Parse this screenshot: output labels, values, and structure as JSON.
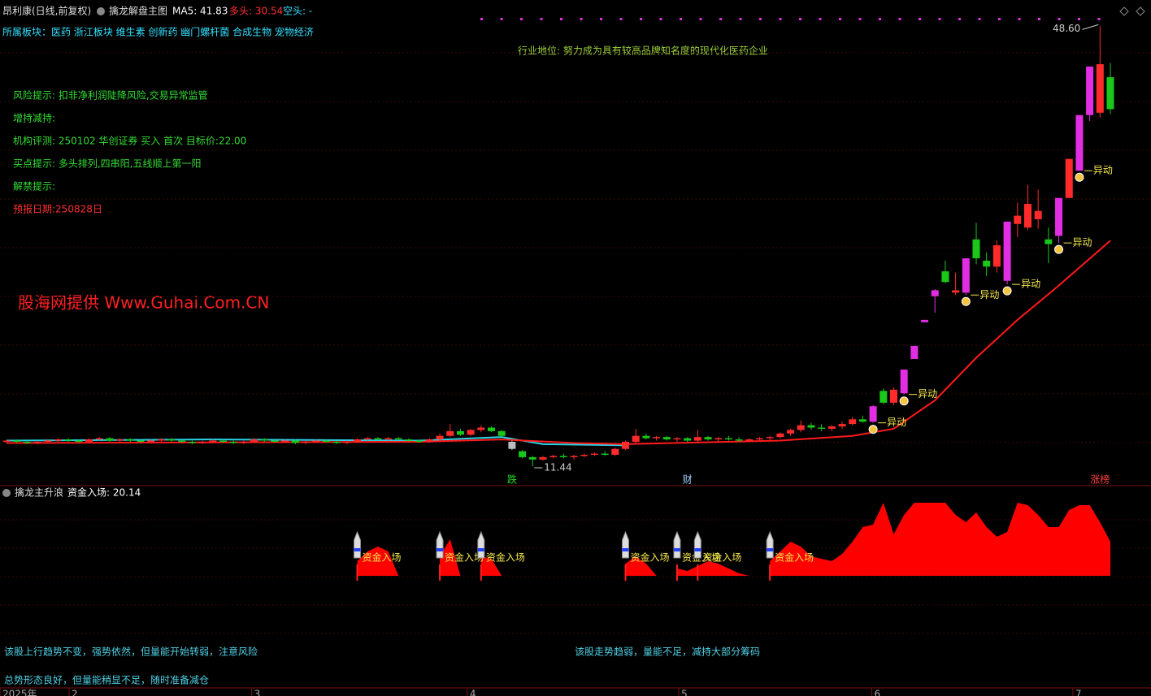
{
  "header": {
    "stock": "昂利康(日线,前复权)",
    "indicator": "擒龙解盘主图",
    "ma5": "MA5: 41.83",
    "bull": "多头: 30.54",
    "bear": "空头: -"
  },
  "info": {
    "sector": "所属板块：医药 浙江板块 维生素 创新药 幽门螺杆菌 合成生物 宠物经济",
    "industry": "行业地位: 努力成为具有较高品牌知名度的现代化医药企业",
    "lines": [
      "风险提示: 扣非净利润陡降风险,交易异常监管",
      "增持减持:",
      "机构评测: 250102 华创证券 买入 首次 目标价:22.00",
      "买点提示: 多头排列,四串阳,五线顺上第一阳",
      "解禁提示:"
    ],
    "forecast": "预报日期:250828日",
    "watermark": "股海网提供 Www.Guhai.Com.CN"
  },
  "panel2": {
    "name": "擒龙主升浪",
    "value": "资金入场: 20.14"
  },
  "messages": [
    "该股上行趋势不变，强势依然，但量能开始转弱，注意风险",
    "总势形态良好，但量能稍显不足，随时准备减仓",
    "该股走势趋弱，量能不足，减持大部分筹码"
  ],
  "chart_data": [
    {
      "type": "candlestick",
      "ylim": [
        10,
        50
      ],
      "colors": {
        "up": "#ff2b2b",
        "down": "#19c819",
        "limit": "#e22ee2",
        "gray": "#bbbbbb",
        "ma": "#ff1a1a",
        "ma2": "#2ad4e8"
      },
      "limit_indices": [
        84,
        87,
        88,
        89,
        90,
        93,
        97,
        102,
        104,
        105
      ],
      "gray_indices": [
        49
      ],
      "ohlc": [
        [
          13.5,
          13.7,
          13.4,
          13.6
        ],
        [
          13.6,
          13.7,
          13.4,
          13.5
        ],
        [
          13.5,
          13.6,
          13.3,
          13.4
        ],
        [
          13.4,
          13.6,
          13.3,
          13.5
        ],
        [
          13.5,
          13.7,
          13.4,
          13.6
        ],
        [
          13.6,
          13.8,
          13.5,
          13.7
        ],
        [
          13.7,
          13.8,
          13.5,
          13.6
        ],
        [
          13.6,
          13.7,
          13.4,
          13.5
        ],
        [
          13.5,
          13.8,
          13.4,
          13.7
        ],
        [
          13.7,
          13.9,
          13.6,
          13.8
        ],
        [
          13.8,
          13.9,
          13.5,
          13.6
        ],
        [
          13.6,
          13.8,
          13.5,
          13.7
        ],
        [
          13.7,
          13.8,
          13.5,
          13.6
        ],
        [
          13.6,
          13.7,
          13.4,
          13.5
        ],
        [
          13.5,
          13.7,
          13.4,
          13.6
        ],
        [
          13.6,
          13.8,
          13.5,
          13.7
        ],
        [
          13.7,
          13.8,
          13.5,
          13.6
        ],
        [
          13.6,
          13.7,
          13.4,
          13.5
        ],
        [
          13.5,
          13.6,
          13.3,
          13.4
        ],
        [
          13.4,
          13.6,
          13.3,
          13.5
        ],
        [
          13.5,
          13.7,
          13.4,
          13.6
        ],
        [
          13.6,
          13.7,
          13.4,
          13.5
        ],
        [
          13.5,
          13.6,
          13.3,
          13.4
        ],
        [
          13.4,
          13.6,
          13.3,
          13.5
        ],
        [
          13.5,
          13.8,
          13.4,
          13.7
        ],
        [
          13.7,
          13.8,
          13.5,
          13.6
        ],
        [
          13.6,
          13.7,
          13.4,
          13.5
        ],
        [
          13.5,
          13.7,
          13.4,
          13.6
        ],
        [
          13.6,
          13.7,
          13.3,
          13.4
        ],
        [
          13.4,
          13.6,
          13.3,
          13.5
        ],
        [
          13.5,
          13.7,
          13.4,
          13.6
        ],
        [
          13.6,
          13.7,
          13.4,
          13.5
        ],
        [
          13.5,
          13.6,
          13.3,
          13.4
        ],
        [
          13.4,
          13.6,
          13.3,
          13.5
        ],
        [
          13.5,
          13.8,
          13.4,
          13.7
        ],
        [
          13.7,
          13.9,
          13.6,
          13.8
        ],
        [
          13.8,
          13.9,
          13.6,
          13.7
        ],
        [
          13.7,
          13.9,
          13.6,
          13.8
        ],
        [
          13.8,
          13.9,
          13.6,
          13.7
        ],
        [
          13.7,
          13.8,
          13.5,
          13.6
        ],
        [
          13.6,
          13.7,
          13.4,
          13.5
        ],
        [
          13.5,
          13.8,
          13.4,
          13.7
        ],
        [
          13.7,
          14.2,
          13.6,
          14.0
        ],
        [
          14.0,
          15.0,
          13.9,
          14.4
        ],
        [
          14.4,
          14.6,
          14.0,
          14.1
        ],
        [
          14.1,
          14.6,
          14.0,
          14.5
        ],
        [
          14.5,
          14.9,
          14.3,
          14.7
        ],
        [
          14.7,
          14.8,
          14.3,
          14.4
        ],
        [
          14.4,
          14.5,
          13.9,
          14.0
        ],
        [
          13.5,
          13.6,
          12.8,
          12.9
        ],
        [
          12.7,
          12.8,
          12.1,
          12.2
        ],
        [
          12.2,
          12.3,
          11.44,
          12.0
        ],
        [
          12.0,
          12.3,
          11.9,
          12.2
        ],
        [
          12.2,
          12.4,
          12.1,
          12.3
        ],
        [
          12.3,
          12.5,
          12.1,
          12.2
        ],
        [
          12.2,
          12.4,
          12.0,
          12.3
        ],
        [
          12.3,
          12.5,
          12.2,
          12.4
        ],
        [
          12.4,
          12.6,
          12.3,
          12.5
        ],
        [
          12.5,
          12.7,
          12.3,
          12.4
        ],
        [
          12.4,
          13.0,
          12.3,
          12.9
        ],
        [
          12.9,
          13.6,
          12.8,
          13.5
        ],
        [
          13.5,
          14.6,
          13.4,
          14.0
        ],
        [
          14.0,
          14.2,
          13.7,
          13.8
        ],
        [
          13.8,
          14.0,
          13.6,
          13.9
        ],
        [
          13.9,
          14.0,
          13.6,
          13.7
        ],
        [
          13.7,
          13.9,
          13.5,
          13.8
        ],
        [
          13.8,
          13.9,
          13.5,
          13.6
        ],
        [
          13.6,
          14.5,
          13.5,
          13.9
        ],
        [
          13.9,
          14.0,
          13.6,
          13.7
        ],
        [
          13.7,
          13.9,
          13.5,
          13.8
        ],
        [
          13.8,
          14.0,
          13.6,
          13.7
        ],
        [
          13.7,
          13.9,
          13.5,
          13.6
        ],
        [
          13.6,
          13.8,
          13.5,
          13.7
        ],
        [
          13.7,
          13.9,
          13.6,
          13.8
        ],
        [
          13.8,
          14.0,
          13.6,
          13.9
        ],
        [
          13.9,
          14.3,
          13.8,
          14.2
        ],
        [
          14.2,
          14.6,
          14.0,
          14.5
        ],
        [
          14.5,
          15.3,
          14.3,
          14.9
        ],
        [
          14.9,
          15.1,
          14.5,
          14.7
        ],
        [
          14.7,
          15.0,
          14.4,
          14.6
        ],
        [
          14.6,
          14.9,
          14.4,
          14.8
        ],
        [
          14.8,
          15.2,
          14.6,
          15.0
        ],
        [
          15.0,
          15.6,
          14.9,
          15.4
        ],
        [
          15.4,
          15.7,
          15.1,
          15.2
        ],
        [
          15.2,
          16.6,
          15.1,
          16.5
        ],
        [
          17.8,
          18.0,
          16.7,
          16.8
        ],
        [
          16.8,
          18.1,
          16.6,
          17.9
        ],
        [
          17.6,
          19.6,
          17.5,
          19.6
        ],
        [
          20.5,
          21.6,
          20.5,
          21.6
        ],
        [
          23.6,
          23.8,
          23.6,
          23.8
        ],
        [
          25.8,
          26.4,
          24.4,
          26.3
        ],
        [
          27.9,
          28.8,
          26.9,
          27.0
        ],
        [
          26.1,
          27.8,
          25.9,
          26.3
        ],
        [
          26.1,
          29.0,
          25.9,
          29.0
        ],
        [
          30.6,
          32.0,
          28.5,
          29.0
        ],
        [
          28.8,
          29.5,
          27.5,
          28.3
        ],
        [
          28.3,
          30.5,
          27.8,
          30.1
        ],
        [
          27.1,
          32.1,
          26.8,
          32.1
        ],
        [
          31.9,
          33.7,
          30.8,
          32.6
        ],
        [
          31.6,
          35.2,
          31.4,
          33.6
        ],
        [
          32.3,
          34.8,
          31.5,
          33.0
        ],
        [
          30.6,
          31.6,
          28.6,
          30.2
        ],
        [
          30.9,
          34.1,
          30.3,
          34.1
        ],
        [
          34.1,
          37.4,
          34.1,
          37.4
        ],
        [
          36.4,
          41.1,
          36.4,
          41.1
        ],
        [
          41.1,
          45.2,
          40.6,
          45.2
        ],
        [
          41.3,
          48.6,
          40.9,
          45.4
        ],
        [
          44.3,
          45.5,
          41.2,
          41.6
        ]
      ],
      "ma": {
        "x": [
          0,
          40,
          48,
          55,
          60,
          75,
          82,
          86,
          90,
          94,
          98,
          102,
          107
        ],
        "values": [
          13.4,
          13.5,
          13.7,
          13.4,
          13.3,
          13.6,
          14.0,
          14.6,
          17.0,
          20.6,
          23.8,
          26.7,
          30.5
        ]
      },
      "ma2": {
        "x": [
          0,
          20,
          40,
          48,
          52,
          60
        ],
        "values": [
          13.6,
          13.7,
          13.6,
          13.9,
          13.3,
          13.2
        ]
      },
      "markers": {
        "label": "异动",
        "indices": [
          84,
          87,
          93,
          97,
          102,
          104
        ]
      },
      "events": [
        {
          "x": 49,
          "label": "跌",
          "color": "#22dd22"
        },
        {
          "x": 66,
          "label": "财",
          "color": "#9fd0ff"
        },
        {
          "x": 106,
          "label": "涨榜",
          "color": "#ff4040"
        }
      ],
      "annotations": [
        {
          "x": 106,
          "value": 48.6,
          "label": "48.60"
        },
        {
          "x": 51,
          "value": 11.44,
          "label": "11.44"
        }
      ],
      "xticks": [
        {
          "value": 0,
          "label": "2025年"
        },
        {
          "value": 6.7,
          "label": "2"
        },
        {
          "value": 24.4,
          "label": "3"
        },
        {
          "value": 45.3,
          "label": "4"
        },
        {
          "value": 65.8,
          "label": "5"
        },
        {
          "value": 84.5,
          "label": "6"
        },
        {
          "value": 104,
          "label": "7"
        }
      ]
    },
    {
      "type": "area",
      "color": "#ff0000",
      "ylim": [
        0,
        30
      ],
      "x": [
        34,
        35,
        36,
        37,
        38,
        39,
        42,
        43,
        44,
        45,
        46,
        47,
        48,
        49,
        60,
        61,
        62,
        63,
        64,
        65,
        66,
        67,
        68,
        69,
        70,
        71,
        72,
        73,
        74,
        75,
        76,
        77,
        78,
        79,
        80,
        81,
        82,
        83,
        84,
        85,
        86,
        87,
        88,
        89,
        90,
        91,
        92,
        93,
        94,
        95,
        96,
        97,
        98,
        99,
        100,
        101,
        102,
        103,
        104,
        105,
        106,
        107
      ],
      "values": [
        6,
        10,
        12,
        10,
        0,
        null,
        8,
        15,
        0,
        null,
        8,
        7,
        0,
        null,
        5,
        8,
        5,
        0,
        null,
        3,
        2,
        4,
        6,
        5,
        3,
        1,
        0,
        null,
        6,
        10,
        14,
        12,
        8,
        7,
        6,
        9,
        14,
        20,
        21,
        30,
        17,
        25,
        30,
        30,
        30,
        30,
        25,
        22,
        26,
        20,
        16,
        18,
        30,
        29,
        25,
        20,
        20,
        27,
        29,
        29,
        22,
        14
      ],
      "markers": {
        "label": "资金入场",
        "indices": [
          34,
          42,
          46,
          60,
          65,
          67,
          74
        ]
      }
    }
  ]
}
